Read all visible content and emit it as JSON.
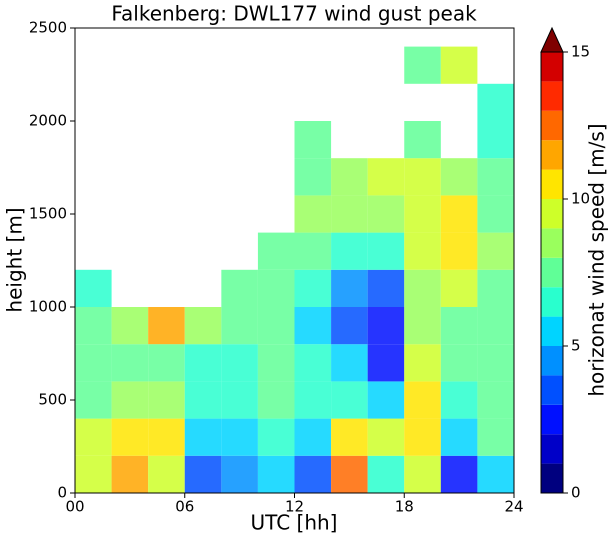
{
  "chart_data": {
    "type": "heatmap",
    "title": "Falkenberg: DWL177 wind gust peak",
    "x_label": "UTC [hh]",
    "y_label": "height [m]",
    "x": [
      1,
      3,
      5,
      7,
      9,
      11,
      13,
      15,
      17,
      19,
      21,
      23
    ],
    "y": [
      100,
      300,
      500,
      700,
      900,
      1100,
      1300,
      1500,
      1700,
      1900,
      2100,
      2300
    ],
    "z": [
      [
        9,
        9,
        7,
        7,
        7,
        6,
        null,
        null,
        null,
        null,
        null,
        null
      ],
      [
        11,
        10,
        8,
        7,
        8,
        null,
        null,
        null,
        null,
        null,
        null,
        null
      ],
      [
        9,
        10,
        8,
        7,
        11,
        null,
        null,
        null,
        null,
        null,
        null,
        null
      ],
      [
        3,
        5,
        6,
        6,
        8,
        null,
        null,
        null,
        null,
        null,
        null,
        null
      ],
      [
        4,
        5,
        6,
        6,
        7,
        7,
        null,
        null,
        null,
        null,
        null,
        null
      ],
      [
        5,
        6,
        7,
        7,
        7,
        7,
        7,
        null,
        null,
        null,
        null,
        null
      ],
      [
        3,
        5,
        6,
        6,
        5,
        6,
        7,
        8,
        7,
        7,
        null,
        null
      ],
      [
        12,
        10,
        6,
        5,
        3,
        4,
        6,
        8,
        8,
        null,
        null,
        null
      ],
      [
        6,
        9,
        5,
        2,
        2,
        3,
        6,
        8,
        9,
        null,
        null,
        null
      ],
      [
        9,
        10,
        10,
        9,
        8,
        8,
        9,
        9,
        9,
        7,
        null,
        7
      ],
      [
        2,
        5,
        6,
        7,
        7,
        9,
        10,
        10,
        8,
        null,
        null,
        9
      ],
      [
        5,
        7,
        7,
        7,
        7,
        7,
        8,
        7,
        7,
        6,
        6,
        null
      ]
    ],
    "xlim": [
      0,
      24
    ],
    "xticks": [
      {
        "value": 0,
        "label": "00"
      },
      {
        "value": 6,
        "label": "06"
      },
      {
        "value": 12,
        "label": "12"
      },
      {
        "value": 18,
        "label": "18"
      },
      {
        "value": 24,
        "label": "24"
      }
    ],
    "ylim": [
      0,
      2500
    ],
    "yticks": [
      0,
      500,
      1000,
      1500,
      2000,
      2500
    ],
    "colorbar_label": "horizonat wind speed [m/s]",
    "clim": [
      0,
      15
    ],
    "cticks": [
      0,
      5,
      10,
      15
    ],
    "colors": [
      "#00007f",
      "#0000c8",
      "#0010ff",
      "#0050ff",
      "#0090ff",
      "#00d4ff",
      "#29ffce",
      "#60ff97",
      "#9aff5d",
      "#ceff29",
      "#ffe500",
      "#ffa600",
      "#ff6800",
      "#ff2a00",
      "#d30000"
    ],
    "extend_color": "#7f0000"
  }
}
